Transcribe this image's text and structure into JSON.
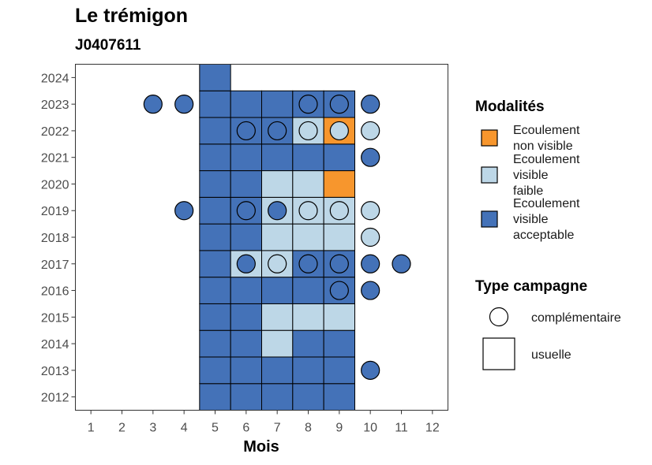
{
  "chart_data": {
    "type": "heatmap",
    "title": "Le trémigon",
    "subtitle": "J0407611",
    "xlabel": "Mois",
    "ylabel": "",
    "x_ticks": [
      1,
      2,
      3,
      4,
      5,
      6,
      7,
      8,
      9,
      10,
      11,
      12
    ],
    "y_ticks": [
      2012,
      2013,
      2014,
      2015,
      2016,
      2017,
      2018,
      2019,
      2020,
      2021,
      2022,
      2023,
      2024
    ],
    "xlim": [
      0.5,
      12.5
    ],
    "ylim": [
      2011.5,
      2024.5
    ],
    "grid": false,
    "legend_position": "right",
    "colors": {
      "acceptable": "#4472b8",
      "faible": "#bdd7e7",
      "non_visible": "#f7962d"
    },
    "legend_modalites": {
      "title": "Modalités",
      "items": [
        {
          "key": "non_visible",
          "label": [
            "Ecoulement",
            "non visible"
          ]
        },
        {
          "key": "faible",
          "label": [
            "Ecoulement",
            "visible",
            "faible"
          ]
        },
        {
          "key": "acceptable",
          "label": [
            "Ecoulement",
            "visible",
            "acceptable"
          ]
        }
      ]
    },
    "legend_type": {
      "title": "Type campagne",
      "items": [
        {
          "shape": "circle",
          "label": "complémentaire"
        },
        {
          "shape": "square",
          "label": "usuelle"
        }
      ]
    },
    "usuelle": [
      {
        "year": 2012,
        "month": 5,
        "m": "acceptable"
      },
      {
        "year": 2012,
        "month": 6,
        "m": "acceptable"
      },
      {
        "year": 2012,
        "month": 7,
        "m": "acceptable"
      },
      {
        "year": 2012,
        "month": 8,
        "m": "acceptable"
      },
      {
        "year": 2012,
        "month": 9,
        "m": "acceptable"
      },
      {
        "year": 2013,
        "month": 5,
        "m": "acceptable"
      },
      {
        "year": 2013,
        "month": 6,
        "m": "acceptable"
      },
      {
        "year": 2013,
        "month": 7,
        "m": "acceptable"
      },
      {
        "year": 2013,
        "month": 8,
        "m": "acceptable"
      },
      {
        "year": 2013,
        "month": 9,
        "m": "acceptable"
      },
      {
        "year": 2014,
        "month": 5,
        "m": "acceptable"
      },
      {
        "year": 2014,
        "month": 6,
        "m": "acceptable"
      },
      {
        "year": 2014,
        "month": 7,
        "m": "faible"
      },
      {
        "year": 2014,
        "month": 8,
        "m": "acceptable"
      },
      {
        "year": 2014,
        "month": 9,
        "m": "acceptable"
      },
      {
        "year": 2015,
        "month": 5,
        "m": "acceptable"
      },
      {
        "year": 2015,
        "month": 6,
        "m": "acceptable"
      },
      {
        "year": 2015,
        "month": 7,
        "m": "faible"
      },
      {
        "year": 2015,
        "month": 8,
        "m": "faible"
      },
      {
        "year": 2015,
        "month": 9,
        "m": "faible"
      },
      {
        "year": 2016,
        "month": 5,
        "m": "acceptable"
      },
      {
        "year": 2016,
        "month": 6,
        "m": "acceptable"
      },
      {
        "year": 2016,
        "month": 7,
        "m": "acceptable"
      },
      {
        "year": 2016,
        "month": 8,
        "m": "acceptable"
      },
      {
        "year": 2016,
        "month": 9,
        "m": "acceptable"
      },
      {
        "year": 2017,
        "month": 5,
        "m": "acceptable"
      },
      {
        "year": 2017,
        "month": 6,
        "m": "faible"
      },
      {
        "year": 2017,
        "month": 7,
        "m": "faible"
      },
      {
        "year": 2017,
        "month": 8,
        "m": "acceptable"
      },
      {
        "year": 2017,
        "month": 9,
        "m": "acceptable"
      },
      {
        "year": 2018,
        "month": 5,
        "m": "acceptable"
      },
      {
        "year": 2018,
        "month": 6,
        "m": "acceptable"
      },
      {
        "year": 2018,
        "month": 7,
        "m": "faible"
      },
      {
        "year": 2018,
        "month": 8,
        "m": "faible"
      },
      {
        "year": 2018,
        "month": 9,
        "m": "faible"
      },
      {
        "year": 2019,
        "month": 5,
        "m": "acceptable"
      },
      {
        "year": 2019,
        "month": 6,
        "m": "acceptable"
      },
      {
        "year": 2019,
        "month": 7,
        "m": "faible"
      },
      {
        "year": 2019,
        "month": 8,
        "m": "faible"
      },
      {
        "year": 2019,
        "month": 9,
        "m": "faible"
      },
      {
        "year": 2020,
        "month": 5,
        "m": "acceptable"
      },
      {
        "year": 2020,
        "month": 6,
        "m": "acceptable"
      },
      {
        "year": 2020,
        "month": 7,
        "m": "faible"
      },
      {
        "year": 2020,
        "month": 8,
        "m": "faible"
      },
      {
        "year": 2020,
        "month": 9,
        "m": "non_visible"
      },
      {
        "year": 2021,
        "month": 5,
        "m": "acceptable"
      },
      {
        "year": 2021,
        "month": 6,
        "m": "acceptable"
      },
      {
        "year": 2021,
        "month": 7,
        "m": "acceptable"
      },
      {
        "year": 2021,
        "month": 8,
        "m": "acceptable"
      },
      {
        "year": 2021,
        "month": 9,
        "m": "acceptable"
      },
      {
        "year": 2022,
        "month": 5,
        "m": "acceptable"
      },
      {
        "year": 2022,
        "month": 6,
        "m": "acceptable"
      },
      {
        "year": 2022,
        "month": 7,
        "m": "acceptable"
      },
      {
        "year": 2022,
        "month": 8,
        "m": "faible"
      },
      {
        "year": 2022,
        "month": 9,
        "m": "non_visible"
      },
      {
        "year": 2023,
        "month": 5,
        "m": "acceptable"
      },
      {
        "year": 2023,
        "month": 6,
        "m": "acceptable"
      },
      {
        "year": 2023,
        "month": 7,
        "m": "acceptable"
      },
      {
        "year": 2023,
        "month": 8,
        "m": "acceptable"
      },
      {
        "year": 2023,
        "month": 9,
        "m": "acceptable"
      },
      {
        "year": 2024,
        "month": 5,
        "m": "acceptable"
      }
    ],
    "complementaire": [
      {
        "year": 2013,
        "month": 10,
        "m": "acceptable"
      },
      {
        "year": 2016,
        "month": 9,
        "m": "acceptable"
      },
      {
        "year": 2016,
        "month": 10,
        "m": "acceptable"
      },
      {
        "year": 2017,
        "month": 6,
        "m": "acceptable"
      },
      {
        "year": 2017,
        "month": 7,
        "m": "faible"
      },
      {
        "year": 2017,
        "month": 8,
        "m": "acceptable"
      },
      {
        "year": 2017,
        "month": 9,
        "m": "acceptable"
      },
      {
        "year": 2017,
        "month": 10,
        "m": "acceptable"
      },
      {
        "year": 2017,
        "month": 11,
        "m": "acceptable"
      },
      {
        "year": 2018,
        "month": 10,
        "m": "faible"
      },
      {
        "year": 2019,
        "month": 4,
        "m": "acceptable"
      },
      {
        "year": 2019,
        "month": 6,
        "m": "acceptable"
      },
      {
        "year": 2019,
        "month": 7,
        "m": "acceptable"
      },
      {
        "year": 2019,
        "month": 8,
        "m": "faible"
      },
      {
        "year": 2019,
        "month": 9,
        "m": "faible"
      },
      {
        "year": 2019,
        "month": 10,
        "m": "faible"
      },
      {
        "year": 2021,
        "month": 10,
        "m": "acceptable"
      },
      {
        "year": 2022,
        "month": 6,
        "m": "acceptable"
      },
      {
        "year": 2022,
        "month": 7,
        "m": "acceptable"
      },
      {
        "year": 2022,
        "month": 8,
        "m": "faible"
      },
      {
        "year": 2022,
        "month": 9,
        "m": "faible"
      },
      {
        "year": 2022,
        "month": 10,
        "m": "faible"
      },
      {
        "year": 2023,
        "month": 3,
        "m": "acceptable"
      },
      {
        "year": 2023,
        "month": 4,
        "m": "acceptable"
      },
      {
        "year": 2023,
        "month": 8,
        "m": "acceptable"
      },
      {
        "year": 2023,
        "month": 9,
        "m": "acceptable"
      },
      {
        "year": 2023,
        "month": 10,
        "m": "acceptable"
      }
    ]
  }
}
